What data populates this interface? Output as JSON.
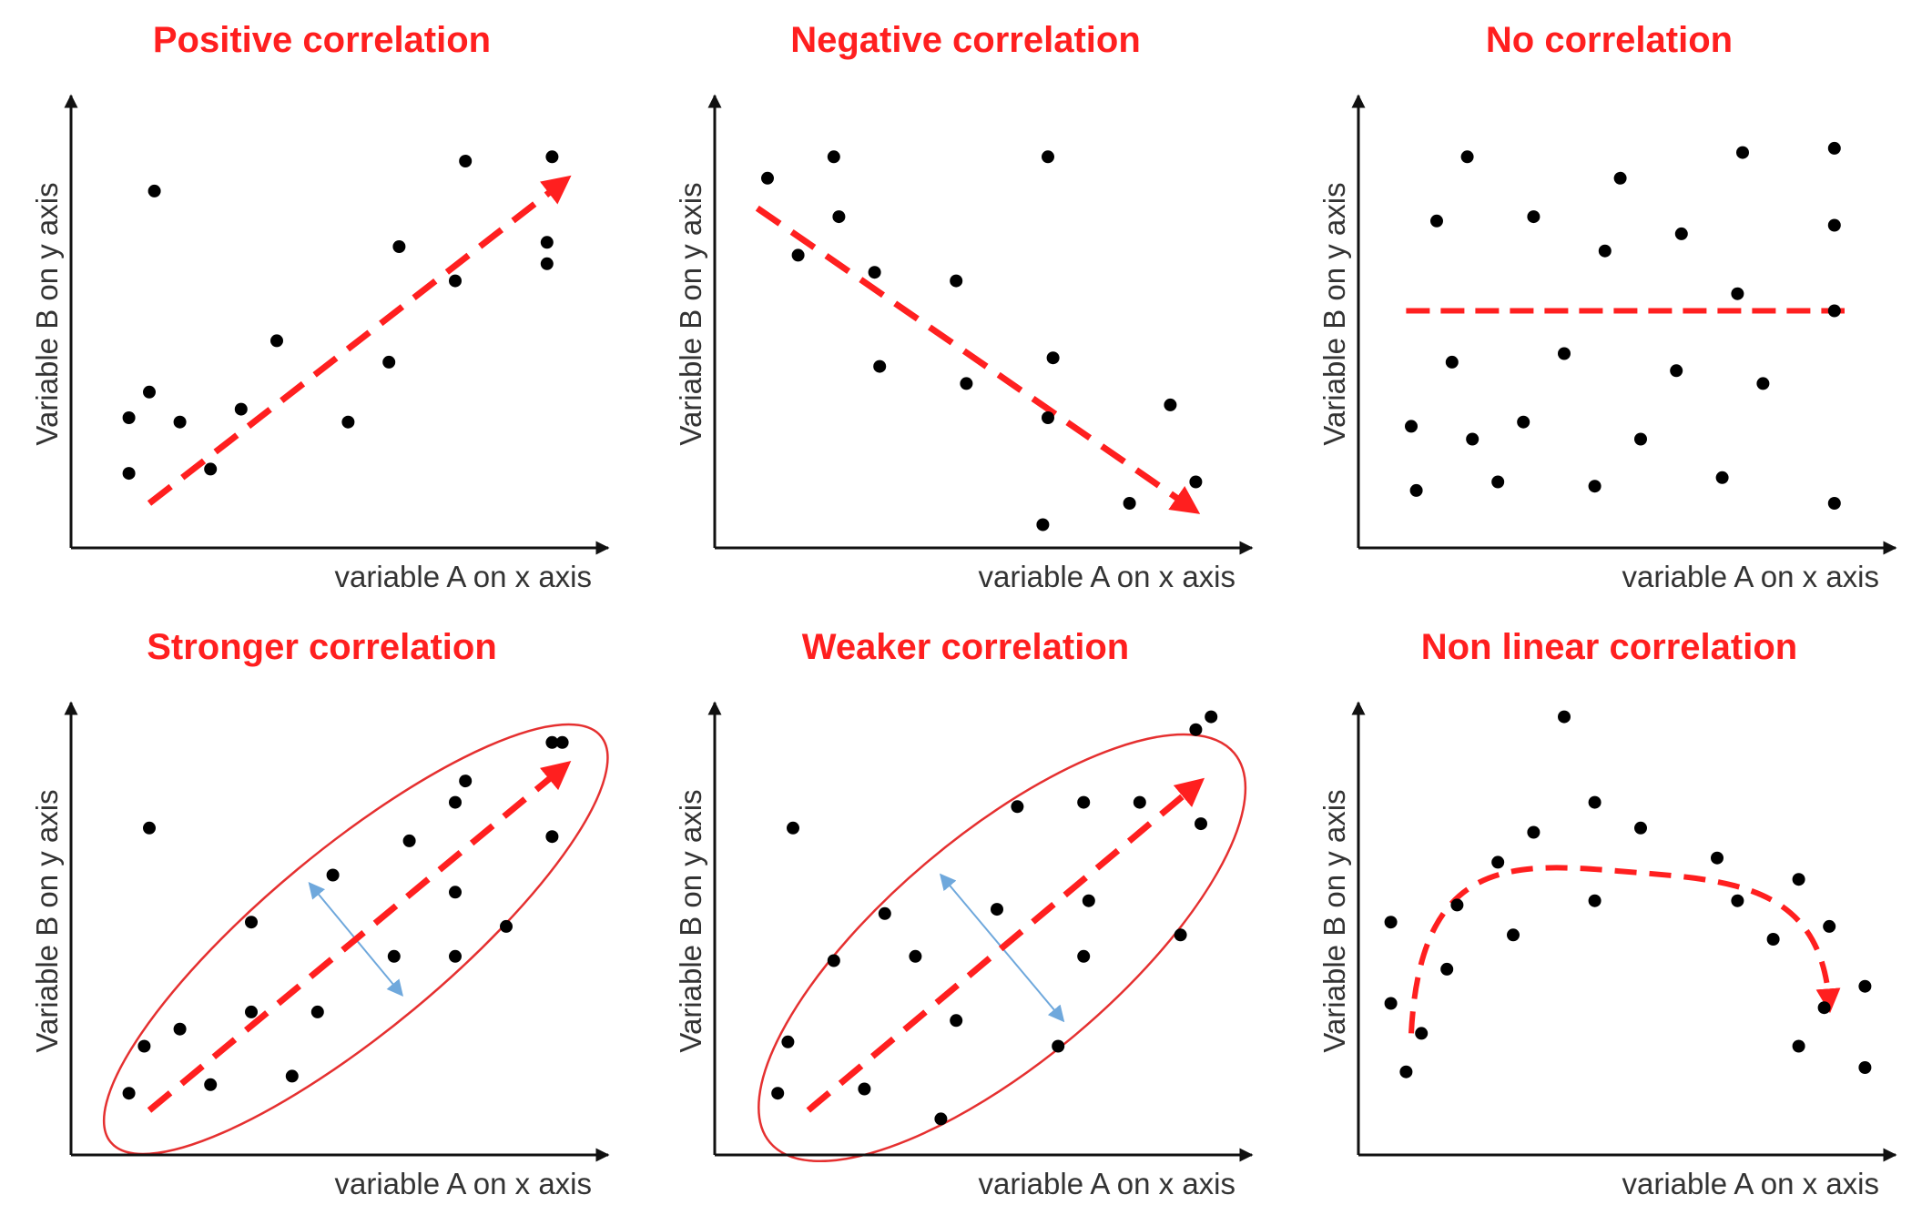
{
  "colors": {
    "title": "#ff1f1f",
    "trend": "#ff1f1f",
    "ellipse": "#e53030",
    "spread": "#6fa8dc",
    "points": "#000000",
    "axis": "#111111"
  },
  "chart_data": [
    {
      "type": "scatter",
      "title": "Positive correlation",
      "xlabel": "variable A on x axis",
      "ylabel": "Variable B on y axis",
      "xlim": [
        0,
        10
      ],
      "ylim": [
        0,
        10
      ],
      "points": [
        [
          1.1,
          1.7
        ],
        [
          1.5,
          3.6
        ],
        [
          1.1,
          3.0
        ],
        [
          1.6,
          8.3
        ],
        [
          2.1,
          2.9
        ],
        [
          2.7,
          1.8
        ],
        [
          3.3,
          3.2
        ],
        [
          4.0,
          4.8
        ],
        [
          5.4,
          2.9
        ],
        [
          6.2,
          4.3
        ],
        [
          6.4,
          7.0
        ],
        [
          7.5,
          6.2
        ],
        [
          7.7,
          9.0
        ],
        [
          9.3,
          6.6
        ],
        [
          9.3,
          7.1
        ],
        [
          9.4,
          9.1
        ]
      ],
      "trend": {
        "style": "dashed-arrow",
        "from": [
          1.5,
          1.0
        ],
        "to": [
          9.6,
          8.5
        ]
      }
    },
    {
      "type": "scatter",
      "title": "Negative correlation",
      "xlabel": "variable A on x axis",
      "ylabel": "Variable B on y axis",
      "xlim": [
        0,
        10
      ],
      "ylim": [
        0,
        10
      ],
      "points": [
        [
          1.0,
          8.6
        ],
        [
          1.6,
          6.8
        ],
        [
          2.3,
          9.1
        ],
        [
          2.4,
          7.7
        ],
        [
          3.1,
          6.4
        ],
        [
          3.2,
          4.2
        ],
        [
          4.7,
          6.2
        ],
        [
          4.9,
          3.8
        ],
        [
          6.5,
          3.0
        ],
        [
          6.4,
          0.5
        ],
        [
          6.6,
          4.4
        ],
        [
          8.1,
          1.0
        ],
        [
          8.9,
          3.3
        ],
        [
          9.4,
          1.5
        ],
        [
          6.5,
          9.1
        ]
      ],
      "trend": {
        "style": "dashed-arrow",
        "from": [
          0.8,
          7.9
        ],
        "to": [
          9.3,
          0.9
        ]
      }
    },
    {
      "type": "scatter",
      "title": "No correlation",
      "xlabel": "variable A on x axis",
      "ylabel": "Variable B on y axis",
      "xlim": [
        0,
        10
      ],
      "ylim": [
        0,
        10
      ],
      "points": [
        [
          1.1,
          1.3
        ],
        [
          1.0,
          2.8
        ],
        [
          1.5,
          7.6
        ],
        [
          1.8,
          4.3
        ],
        [
          2.1,
          9.1
        ],
        [
          2.2,
          2.5
        ],
        [
          2.7,
          1.5
        ],
        [
          3.2,
          2.9
        ],
        [
          3.4,
          7.7
        ],
        [
          4.0,
          4.5
        ],
        [
          4.6,
          1.4
        ],
        [
          4.8,
          6.9
        ],
        [
          5.1,
          8.6
        ],
        [
          5.5,
          2.5
        ],
        [
          6.2,
          4.1
        ],
        [
          6.3,
          7.3
        ],
        [
          7.1,
          1.6
        ],
        [
          7.4,
          5.9
        ],
        [
          7.5,
          9.2
        ],
        [
          7.9,
          3.8
        ],
        [
          9.3,
          1.0
        ],
        [
          9.3,
          9.3
        ],
        [
          9.3,
          7.5
        ],
        [
          9.3,
          5.5
        ]
      ],
      "trend": {
        "style": "dashed-line",
        "from": [
          0.9,
          5.5
        ],
        "to": [
          9.5,
          5.5
        ]
      }
    },
    {
      "type": "scatter",
      "title": "Stronger correlation",
      "xlabel": "variable A on x axis",
      "ylabel": "Variable B on y axis",
      "xlim": [
        0,
        10
      ],
      "ylim": [
        0,
        10
      ],
      "points": [
        [
          1.1,
          1.4
        ],
        [
          1.4,
          2.5
        ],
        [
          1.5,
          7.6
        ],
        [
          2.1,
          2.9
        ],
        [
          2.7,
          1.6
        ],
        [
          3.5,
          3.3
        ],
        [
          3.5,
          5.4
        ],
        [
          4.3,
          1.8
        ],
        [
          4.8,
          3.3
        ],
        [
          5.1,
          6.5
        ],
        [
          6.3,
          4.6
        ],
        [
          6.6,
          7.3
        ],
        [
          7.5,
          6.1
        ],
        [
          7.5,
          4.6
        ],
        [
          7.5,
          8.2
        ],
        [
          7.7,
          8.7
        ],
        [
          8.5,
          5.3
        ],
        [
          9.4,
          7.4
        ],
        [
          9.4,
          9.6
        ],
        [
          9.6,
          9.6
        ]
      ],
      "trend": {
        "style": "dashed-arrow",
        "from": [
          1.5,
          1.0
        ],
        "to": [
          9.6,
          9.0
        ]
      },
      "ellipse": true,
      "spread_arrow": true
    },
    {
      "type": "scatter",
      "title": "Weaker correlation",
      "xlabel": "variable A on x axis",
      "ylabel": "Variable B on y axis",
      "xlim": [
        0,
        10
      ],
      "ylim": [
        0,
        10
      ],
      "points": [
        [
          1.2,
          1.4
        ],
        [
          1.4,
          2.6
        ],
        [
          1.5,
          7.6
        ],
        [
          2.3,
          4.5
        ],
        [
          2.9,
          1.5
        ],
        [
          3.3,
          5.6
        ],
        [
          3.9,
          4.6
        ],
        [
          4.4,
          0.8
        ],
        [
          4.7,
          3.1
        ],
        [
          5.5,
          5.7
        ],
        [
          5.9,
          8.1
        ],
        [
          6.7,
          2.5
        ],
        [
          7.2,
          4.6
        ],
        [
          7.3,
          5.9
        ],
        [
          7.2,
          8.2
        ],
        [
          8.3,
          8.2
        ],
        [
          9.1,
          5.1
        ],
        [
          9.5,
          7.7
        ],
        [
          9.4,
          9.9
        ],
        [
          9.7,
          10.2
        ]
      ],
      "trend": {
        "style": "dashed-arrow",
        "from": [
          1.8,
          1.0
        ],
        "to": [
          9.4,
          8.6
        ]
      },
      "ellipse": true,
      "spread_arrow": true
    },
    {
      "type": "scatter",
      "title": "Non linear correlation",
      "xlabel": "variable A on x axis",
      "ylabel": "Variable B on y axis",
      "xlim": [
        0,
        10
      ],
      "ylim": [
        0,
        10
      ],
      "points": [
        [
          0.6,
          5.4
        ],
        [
          0.6,
          3.5
        ],
        [
          0.9,
          1.9
        ],
        [
          1.2,
          2.8
        ],
        [
          1.7,
          4.3
        ],
        [
          1.9,
          5.8
        ],
        [
          2.7,
          6.8
        ],
        [
          3.0,
          5.1
        ],
        [
          3.4,
          7.5
        ],
        [
          4.0,
          10.2
        ],
        [
          4.6,
          5.9
        ],
        [
          4.6,
          8.2
        ],
        [
          5.5,
          7.6
        ],
        [
          7.0,
          6.9
        ],
        [
          7.4,
          5.9
        ],
        [
          8.1,
          5.0
        ],
        [
          8.6,
          6.4
        ],
        [
          8.6,
          2.5
        ],
        [
          9.1,
          3.4
        ],
        [
          9.2,
          5.3
        ],
        [
          9.9,
          3.9
        ],
        [
          9.9,
          2.0
        ]
      ],
      "trend": {
        "style": "dashed-curve-arrow",
        "from": [
          1.0,
          2.8
        ],
        "peak": [
          5.0,
          6.6
        ],
        "to": [
          9.2,
          3.5
        ]
      }
    }
  ]
}
